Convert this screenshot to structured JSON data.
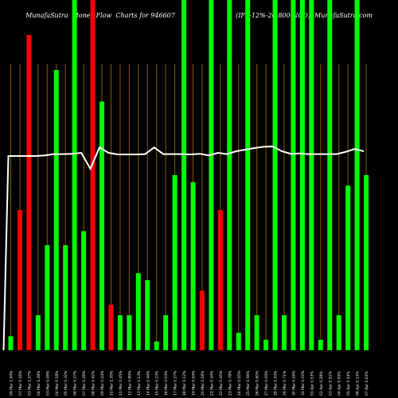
{
  "chart_data": {
    "type": "bar",
    "title": "MunafaSutra  Money Flow  Charts for 946607                              (IFL-12%-20-800-NCD)  MunafaSutra.com",
    "ylim": [
      0,
      100
    ],
    "grid": true,
    "colors": {
      "up": "#00ff00",
      "down": "#ff0000",
      "grid": "#8b5a00",
      "line": "#ffffff",
      "background": "#000000"
    },
    "categories": [
      "09 Mar 1.94%",
      "07 Mar 0.16%",
      "03 Mar 1.57%",
      "04 Mar 1.28%",
      "03 Mar 0.08%",
      "04 Mar 0.18%",
      "05 Mar 0.32%",
      "06 Mar 0.27%",
      "07 Mar 0.26%",
      "08 Mar 0.42%",
      "09 Mar 0.24%",
      "10 Mar 1.35%",
      "11 Mar 0.45%",
      "12 Mar 0.89%",
      "13 Mar 0.13%",
      "14 Mar 0.44%",
      "15 Mar 0.23%",
      "16 Mar 0.03%",
      "17 Mar 0.27%",
      "18 Mar 0.12%",
      "19 Mar 0.54%",
      "20 Mar 0.18%",
      "21 Mar 0.34%",
      "22 Mar 0.45%",
      "23 Mar 0.78%",
      "24 Mar 0.55%",
      "25 Mar 0.56%",
      "26 Mar 0.60%",
      "27 Mar 0.09%",
      "28 Mar 0.33%",
      "29 Mar 0.71%",
      "30 Mar 0.16%",
      "31 Mar 0.22%",
      "01 Apr 0.53%",
      "02 Apr 0.28%",
      "03 Apr 0.51%",
      "04 Apr 0.95%",
      "05 Apr 0.24%",
      "06 Apr 0.13%",
      "07 Apr 0.02%"
    ],
    "values": [
      4,
      40,
      90,
      10,
      30,
      80,
      30,
      100,
      34,
      100,
      71,
      13,
      10,
      10,
      22,
      20,
      2.5,
      10,
      50,
      100,
      48,
      17,
      100,
      40,
      100,
      5,
      100,
      10,
      3,
      100,
      10,
      100,
      100,
      100,
      3,
      100,
      10,
      47,
      100,
      50
    ],
    "directions": [
      "up",
      "down",
      "down",
      "up",
      "up",
      "up",
      "up",
      "up",
      "up",
      "down",
      "up",
      "down",
      "up",
      "up",
      "up",
      "up",
      "up",
      "up",
      "up",
      "up",
      "up",
      "down",
      "up",
      "down",
      "up",
      "up",
      "up",
      "up",
      "up",
      "up",
      "up",
      "up",
      "up",
      "up",
      "up",
      "up",
      "up",
      "up",
      "up",
      "up"
    ],
    "line": [
      61,
      61,
      61,
      61,
      61.2,
      61.6,
      61.6,
      61.7,
      62,
      57,
      63.7,
      62,
      61.5,
      61.5,
      61.5,
      61.6,
      63.7,
      61.6,
      61.6,
      61.6,
      61.5,
      61.7,
      61.2,
      62,
      61.6,
      62.5,
      63,
      63.5,
      63.9,
      64,
      62.5,
      61.7,
      61.8,
      61.6,
      61.6,
      61.6,
      61.6,
      62.3,
      63.2,
      62.5
    ]
  }
}
